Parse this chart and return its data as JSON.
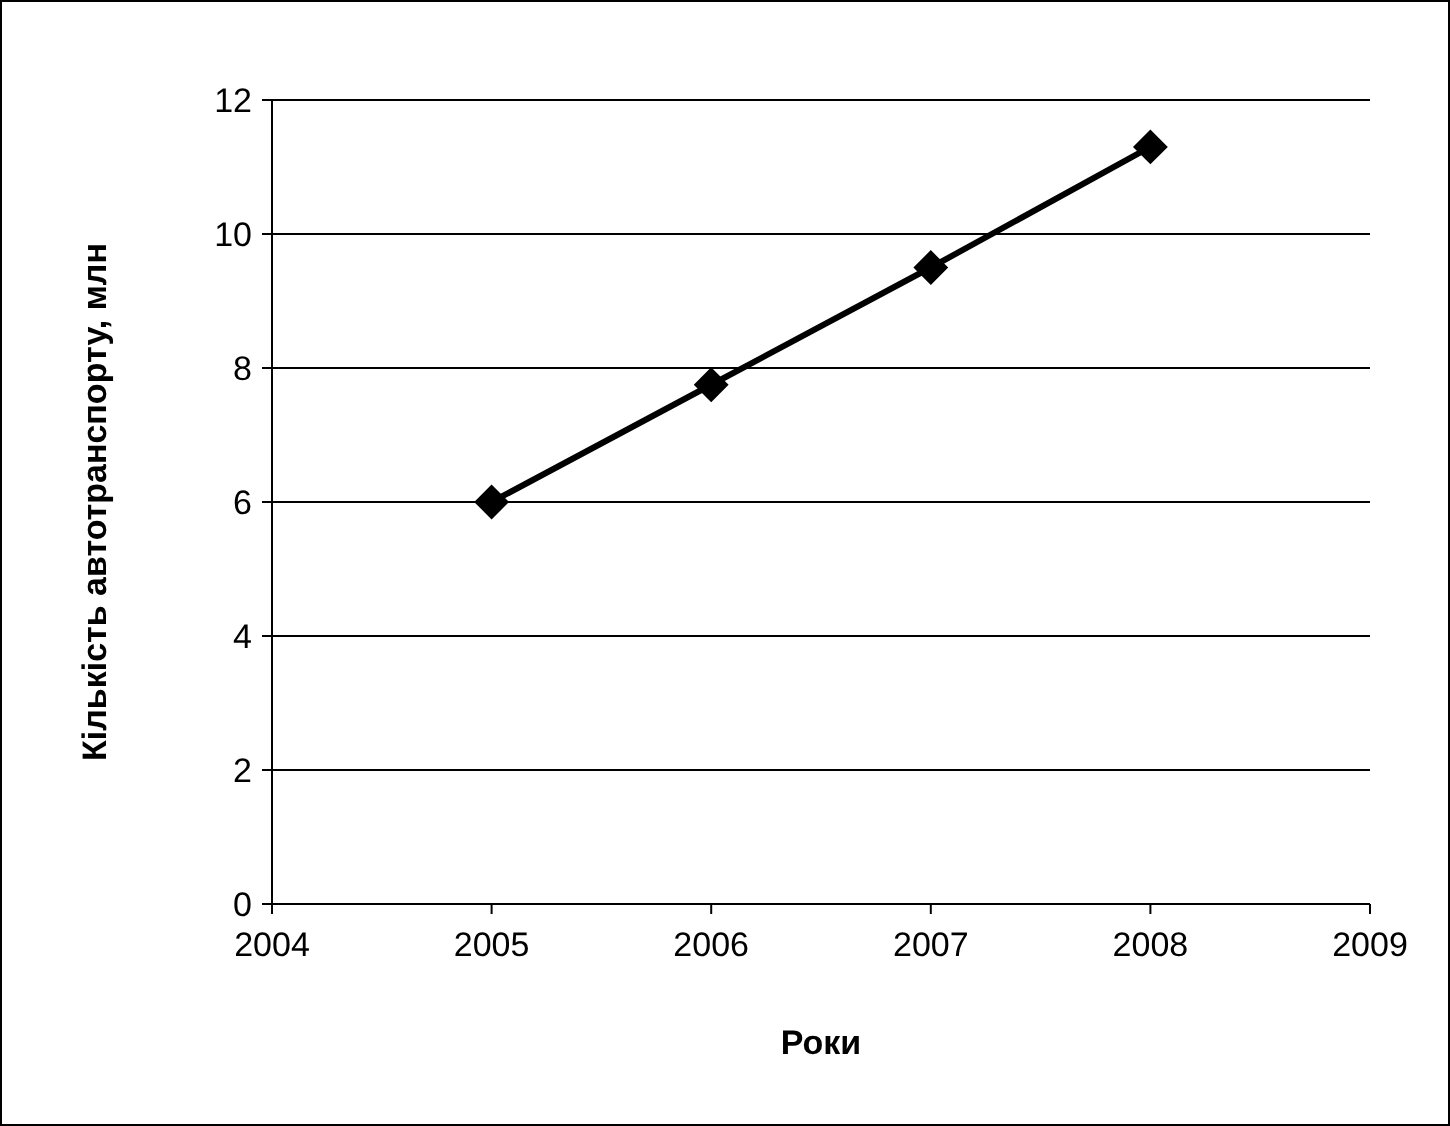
{
  "chart_data": {
    "type": "line",
    "xlabel": "Роки",
    "ylabel": "Кількість автотранспорту, млн",
    "x": [
      2005,
      2006,
      2007,
      2008
    ],
    "series": [
      {
        "color": "#000000",
        "values": [
          6.0,
          7.75,
          9.5,
          11.3
        ]
      }
    ],
    "xlim": [
      2004,
      2009
    ],
    "xticks": [
      2004,
      2005,
      2006,
      2007,
      2008,
      2009
    ],
    "ylim": [
      0,
      12
    ],
    "yticks": [
      0,
      2,
      4,
      6,
      8,
      10,
      12
    ],
    "grid": "y",
    "marker": "diamond",
    "line_style": "solid"
  }
}
